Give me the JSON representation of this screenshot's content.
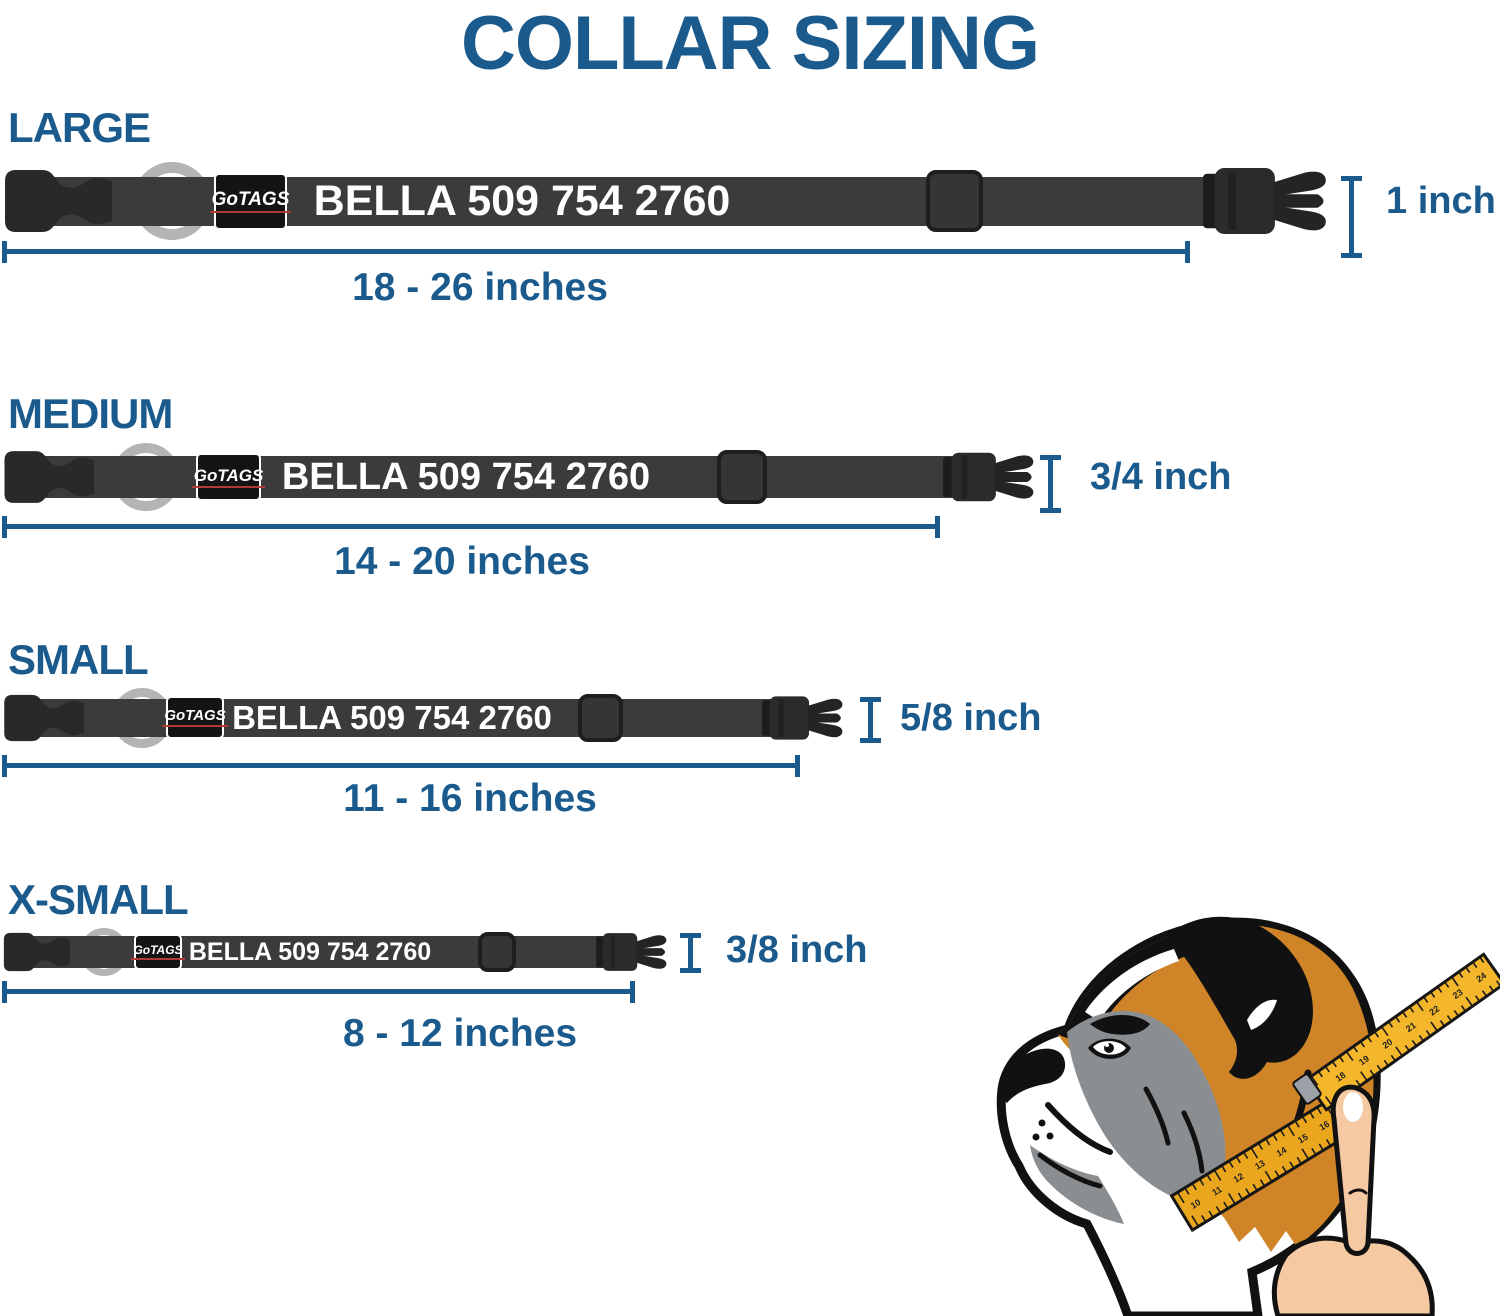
{
  "title": "COLLAR SIZING",
  "brand": {
    "logo_text": "GoTAGS",
    "collar_text": "BELLA 509 754 2760"
  },
  "sizes": [
    {
      "label": "LARGE",
      "range": "18 - 26 inches",
      "width": "1 inch"
    },
    {
      "label": "MEDIUM",
      "range": "14 - 20 inches",
      "width": "3/4 inch"
    },
    {
      "label": "SMALL",
      "range": "11 - 16 inches",
      "width": "5/8 inch"
    },
    {
      "label": "X-SMALL",
      "range": "8 - 12 inches",
      "width": "3/8 inch"
    }
  ],
  "colors": {
    "accent": "#1a5a8c",
    "strap": "#3b3b3b",
    "buckle": "#282828",
    "ring_gray": "#b3b5b4",
    "logo_underline_red": "#b03a34",
    "dog_coat_orange": "#cf8428",
    "dog_mask_gray": "#8b8e90",
    "tape_yellow_upper": "#f4b62a",
    "tape_yellow_lower": "#eaa71e",
    "hand_skin": "#f5c9a2"
  },
  "illustration": {
    "name": "boxer-dog-neck-measurement",
    "tape_numbers_lower": [
      "10",
      "11",
      "12",
      "13",
      "14",
      "15",
      "16"
    ],
    "tape_numbers_upper": [
      "18",
      "19",
      "20",
      "21",
      "22",
      "23",
      "24"
    ]
  }
}
